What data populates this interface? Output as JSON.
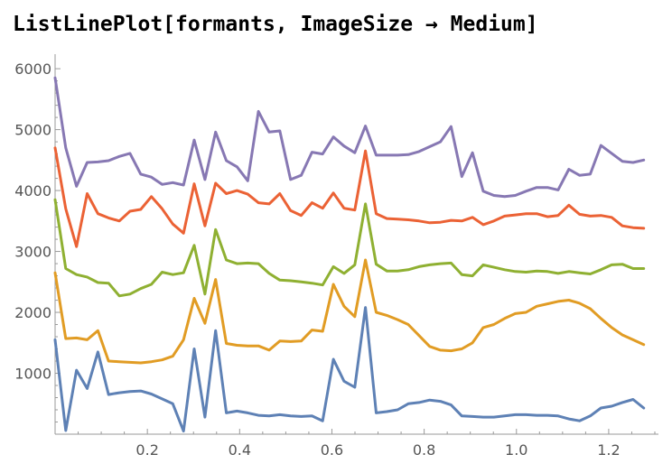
{
  "notebook": {
    "input_expression": "ListLinePlot[formants, ImageSize → Medium]"
  },
  "chart_data": {
    "type": "line",
    "title": "",
    "xlabel": "",
    "ylabel": "",
    "xlim": [
      0,
      1.3
    ],
    "ylim": [
      0,
      6150
    ],
    "grid": false,
    "x_ticks": [
      "0.2",
      "0.4",
      "0.6",
      "0.8",
      "1.0",
      "1.2"
    ],
    "x_tick_values": [
      0.2,
      0.4,
      0.6,
      0.8,
      1.0,
      1.2
    ],
    "y_ticks": [
      "1000",
      "2000",
      "3000",
      "4000",
      "5000",
      "6000"
    ],
    "y_tick_values": [
      1000,
      2000,
      3000,
      4000,
      5000,
      6000
    ],
    "x_step": 0.0232,
    "series": [
      {
        "color": "#5e81b5",
        "values": [
          1550,
          60,
          1050,
          750,
          1350,
          650,
          680,
          700,
          710,
          660,
          580,
          500,
          50,
          1400,
          280,
          1700,
          350,
          380,
          350,
          310,
          300,
          320,
          300,
          290,
          300,
          220,
          1230,
          870,
          770,
          2080,
          350,
          370,
          400,
          500,
          520,
          560,
          540,
          480,
          300,
          290,
          280,
          280,
          300,
          320,
          320,
          310,
          310,
          300,
          250,
          220,
          300,
          430,
          460,
          520,
          570,
          430
        ]
      },
      {
        "color": "#e19c24",
        "values": [
          2650,
          1570,
          1580,
          1550,
          1700,
          1200,
          1190,
          1180,
          1170,
          1190,
          1220,
          1280,
          1550,
          2230,
          1820,
          2540,
          1490,
          1460,
          1450,
          1450,
          1380,
          1530,
          1520,
          1530,
          1710,
          1690,
          2460,
          2100,
          1930,
          2860,
          2000,
          1950,
          1880,
          1800,
          1620,
          1440,
          1380,
          1370,
          1400,
          1500,
          1750,
          1800,
          1900,
          1980,
          2000,
          2100,
          2140,
          2180,
          2200,
          2150,
          2060,
          1900,
          1750,
          1630,
          1550,
          1470
        ]
      },
      {
        "color": "#8fb032",
        "values": [
          3850,
          2720,
          2620,
          2580,
          2490,
          2480,
          2270,
          2300,
          2390,
          2460,
          2660,
          2620,
          2650,
          3100,
          2300,
          3360,
          2860,
          2800,
          2810,
          2800,
          2640,
          2530,
          2520,
          2500,
          2480,
          2450,
          2750,
          2640,
          2780,
          3780,
          2790,
          2680,
          2680,
          2700,
          2750,
          2780,
          2800,
          2810,
          2620,
          2600,
          2780,
          2740,
          2700,
          2670,
          2660,
          2680,
          2670,
          2640,
          2670,
          2650,
          2630,
          2700,
          2780,
          2790,
          2720,
          2720
        ]
      },
      {
        "color": "#eb6235",
        "values": [
          4700,
          3700,
          3080,
          3950,
          3620,
          3550,
          3500,
          3660,
          3690,
          3900,
          3700,
          3450,
          3300,
          4110,
          3420,
          4120,
          3950,
          4000,
          3940,
          3800,
          3780,
          3950,
          3670,
          3590,
          3800,
          3710,
          3960,
          3710,
          3680,
          4650,
          3620,
          3540,
          3530,
          3520,
          3500,
          3470,
          3480,
          3510,
          3500,
          3560,
          3440,
          3500,
          3580,
          3600,
          3620,
          3620,
          3570,
          3590,
          3760,
          3610,
          3580,
          3590,
          3560,
          3420,
          3390,
          3380
        ]
      },
      {
        "color": "#8778b3",
        "values": [
          5850,
          4700,
          4070,
          4460,
          4470,
          4490,
          4560,
          4610,
          4270,
          4220,
          4100,
          4130,
          4090,
          4830,
          4180,
          4960,
          4490,
          4390,
          4160,
          5300,
          4960,
          4980,
          4180,
          4250,
          4630,
          4600,
          4880,
          4730,
          4620,
          5060,
          4580,
          4580,
          4580,
          4590,
          4640,
          4720,
          4800,
          5050,
          4230,
          4620,
          3990,
          3920,
          3900,
          3920,
          3990,
          4050,
          4050,
          4010,
          4350,
          4250,
          4270,
          4740,
          4610,
          4480,
          4460,
          4500
        ]
      }
    ]
  }
}
